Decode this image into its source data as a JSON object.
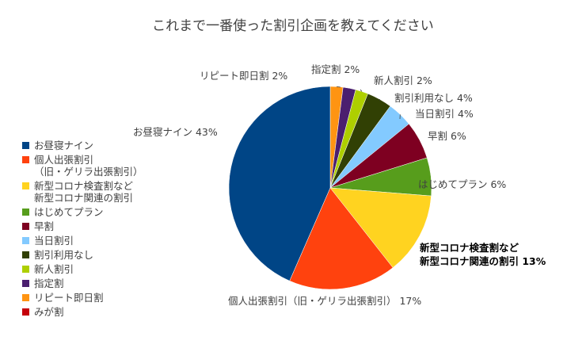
{
  "chart_data": {
    "type": "pie",
    "title": "これまで一番使った割引企画を教えてください",
    "slices": [
      {
        "label": "リピート即日割",
        "value": 2,
        "pct_label": "2%",
        "color": "#FF9412"
      },
      {
        "label": "指定割",
        "value": 2,
        "pct_label": "2%",
        "color": "#4B1F6F"
      },
      {
        "label": "新人割引",
        "value": 2,
        "pct_label": "2%",
        "color": "#AECF00"
      },
      {
        "label": "割引利用なし",
        "value": 4,
        "pct_label": "4%",
        "color": "#314004"
      },
      {
        "label": "当日割引",
        "value": 4,
        "pct_label": "4%",
        "color": "#83CAFF"
      },
      {
        "label": "早割",
        "value": 6,
        "pct_label": "6%",
        "color": "#7E0021"
      },
      {
        "label": "はじめてプラン",
        "value": 6,
        "pct_label": "6%",
        "color": "#579D1C"
      },
      {
        "label": "新型コロナ検査割など\n新型コロナ関連の割引",
        "value": 13,
        "pct_label": "13%",
        "color": "#FFD320"
      },
      {
        "label": "個人出張割引（旧・ゲリラ出張割引）",
        "value": 17,
        "pct_label": "17%",
        "color": "#FF420E"
      },
      {
        "label": "お昼寝ナイン",
        "value": 43,
        "pct_label": "43%",
        "color": "#004586"
      }
    ],
    "legend": {
      "placement": "left",
      "items": [
        {
          "lines": [
            "お昼寝ナイン"
          ],
          "color": "#004586"
        },
        {
          "lines": [
            "個人出張割引",
            "（旧・ゲリラ出張割引）"
          ],
          "color": "#FF420E"
        },
        {
          "lines": [
            "新型コロナ検査割など",
            "新型コロナ関連の割引"
          ],
          "color": "#FFD320"
        },
        {
          "lines": [
            "はじめてプラン"
          ],
          "color": "#579D1C"
        },
        {
          "lines": [
            "早割"
          ],
          "color": "#7E0021"
        },
        {
          "lines": [
            "当日割引"
          ],
          "color": "#83CAFF"
        },
        {
          "lines": [
            "割引利用なし"
          ],
          "color": "#314004"
        },
        {
          "lines": [
            "新人割引"
          ],
          "color": "#AECF00"
        },
        {
          "lines": [
            "指定割"
          ],
          "color": "#4B1F6F"
        },
        {
          "lines": [
            "リピート即日割"
          ],
          "color": "#FF9412"
        },
        {
          "lines": [
            "みが割"
          ],
          "color": "#C5000B"
        }
      ]
    }
  }
}
